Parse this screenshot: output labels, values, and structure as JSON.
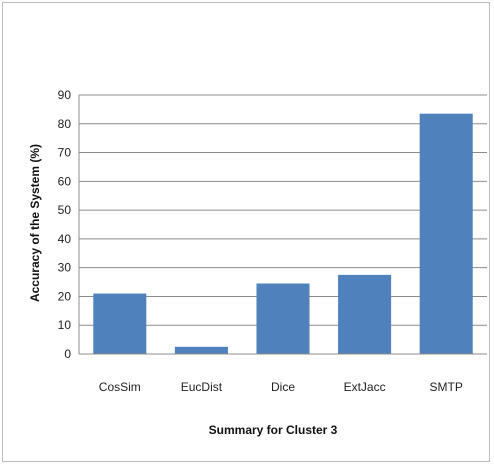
{
  "chart_data": {
    "type": "bar",
    "title": "",
    "xlabel": "Summary for Cluster 3",
    "ylabel": "Accuracy of the System (%)",
    "categories": [
      "CosSim",
      "EucDist",
      "Dice",
      "ExtJacc",
      "SMTP"
    ],
    "values": [
      21,
      2.5,
      24.5,
      27.5,
      83.5
    ],
    "ylim": [
      0,
      90
    ],
    "yticks": [
      0,
      10,
      20,
      30,
      40,
      50,
      60,
      70,
      80,
      90
    ],
    "grid": true,
    "legend": "none",
    "colors": {
      "bar": "#4f81bd",
      "grid": "#8c8c8c",
      "axis": "#8c8c8c"
    }
  }
}
